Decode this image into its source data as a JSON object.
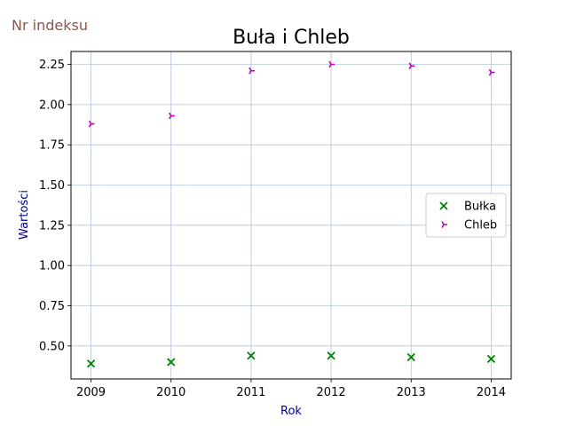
{
  "corner_label": "Nr indeksu",
  "chart_data": {
    "type": "scatter",
    "title": "Buła i Chleb",
    "xlabel": "Rok",
    "ylabel": "Wartości",
    "x": [
      2009,
      2010,
      2011,
      2012,
      2013,
      2014
    ],
    "xlim": [
      2008.75,
      2014.25
    ],
    "ylim": [
      0.295,
      2.33
    ],
    "xticks": [
      2009,
      2010,
      2011,
      2012,
      2013,
      2014
    ],
    "xtick_labels": [
      "2009",
      "2010",
      "2011",
      "2012",
      "2013",
      "2014"
    ],
    "yticks": [
      0.5,
      0.75,
      1.0,
      1.25,
      1.5,
      1.75,
      2.0,
      2.25
    ],
    "ytick_labels": [
      "0.50",
      "0.75",
      "1.00",
      "1.25",
      "1.50",
      "1.75",
      "2.00",
      "2.25"
    ],
    "grid": true,
    "legend_position": "center-right",
    "series": [
      {
        "name": "Bułka",
        "marker": "x",
        "color": "#008000",
        "values": [
          0.39,
          0.4,
          0.44,
          0.44,
          0.43,
          0.42
        ]
      },
      {
        "name": "Chleb",
        "marker": "tri_right",
        "color": "#bf00bf",
        "values": [
          1.88,
          1.93,
          2.21,
          2.25,
          2.24,
          2.2
        ]
      }
    ],
    "colors": {
      "title": "#000000",
      "axis_labels": "#00008b",
      "grid": "#b0c4de",
      "corner_label": "#8c564b"
    }
  }
}
